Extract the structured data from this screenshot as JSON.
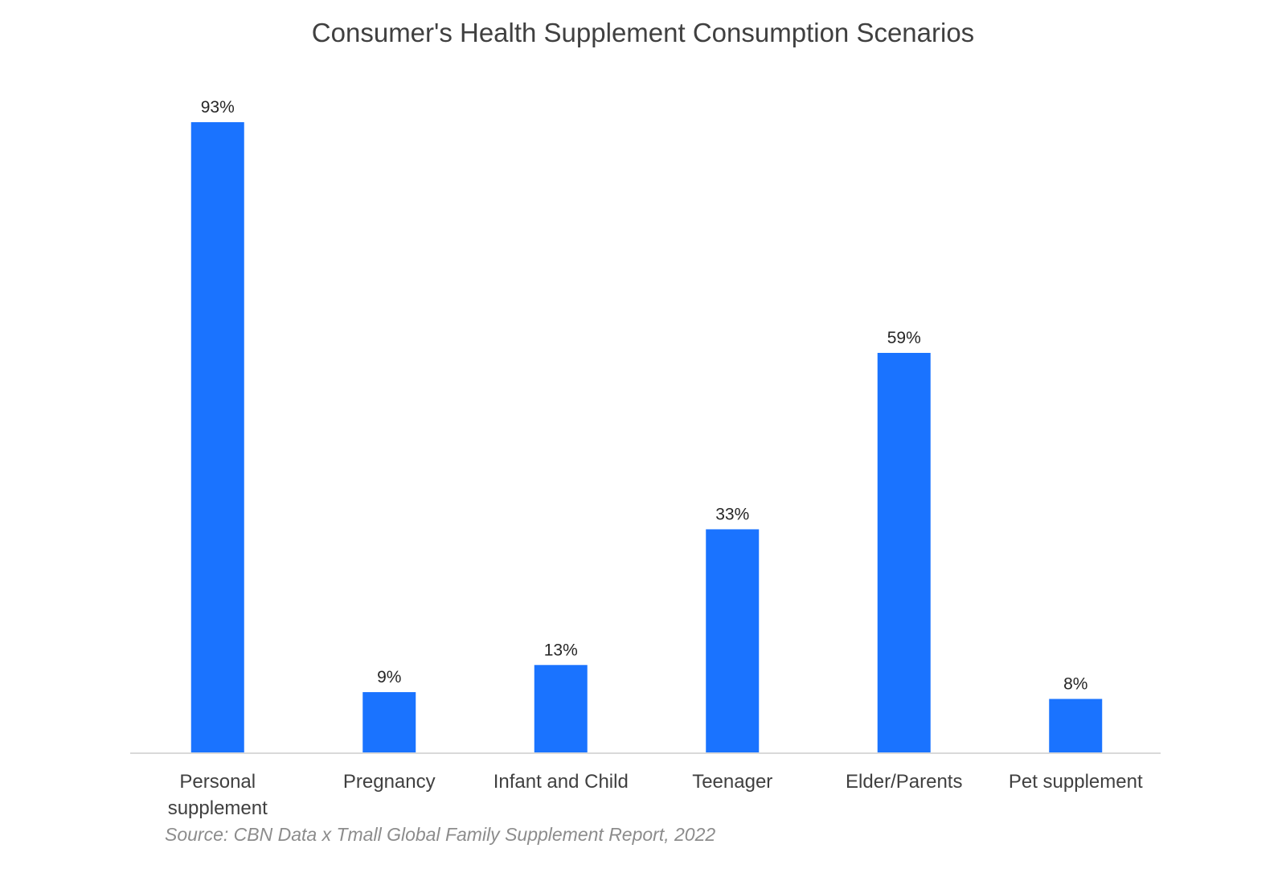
{
  "chart_data": {
    "type": "bar",
    "title": "Consumer's Health Supplement Consumption Scenarios",
    "categories": [
      [
        "Personal",
        "supplement"
      ],
      [
        "Pregnancy"
      ],
      [
        "Infant and Child"
      ],
      [
        "Teenager"
      ],
      [
        "Elder/Parents"
      ],
      [
        "Pet supplement"
      ]
    ],
    "values": [
      93,
      9,
      13,
      33,
      59,
      8
    ],
    "data_labels": [
      "93%",
      "9%",
      "13%",
      "33%",
      "59%",
      "8%"
    ],
    "unit": "%",
    "xlabel": "",
    "ylabel": "",
    "ylim": [
      0,
      100
    ],
    "grid": false,
    "legend": "none",
    "bar_color": "#1a73ff",
    "source": "Source: CBN Data x Tmall Global Family Supplement Report, 2022"
  }
}
